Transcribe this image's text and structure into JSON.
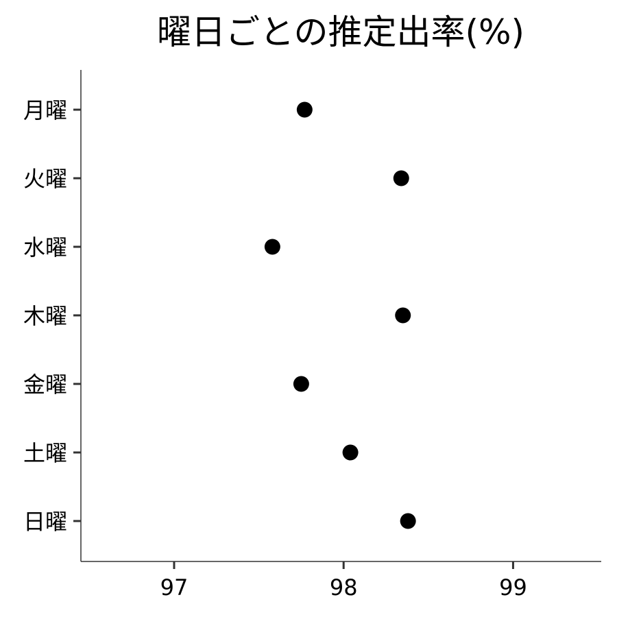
{
  "chart_data": {
    "type": "scatter",
    "title": "曜日ごとの推定出率(%)",
    "xlabel": "",
    "ylabel": "",
    "xlim": [
      96.45,
      99.52
    ],
    "x_ticks": [
      "97",
      "98",
      "99"
    ],
    "x_tick_values": [
      97,
      98,
      99
    ],
    "categories": [
      "月曜",
      "火曜",
      "水曜",
      "木曜",
      "金曜",
      "土曜",
      "日曜"
    ],
    "values": [
      97.77,
      98.34,
      97.58,
      98.35,
      97.75,
      98.04,
      98.38
    ],
    "point_color": "#000000",
    "grid": false,
    "legend": "none"
  }
}
